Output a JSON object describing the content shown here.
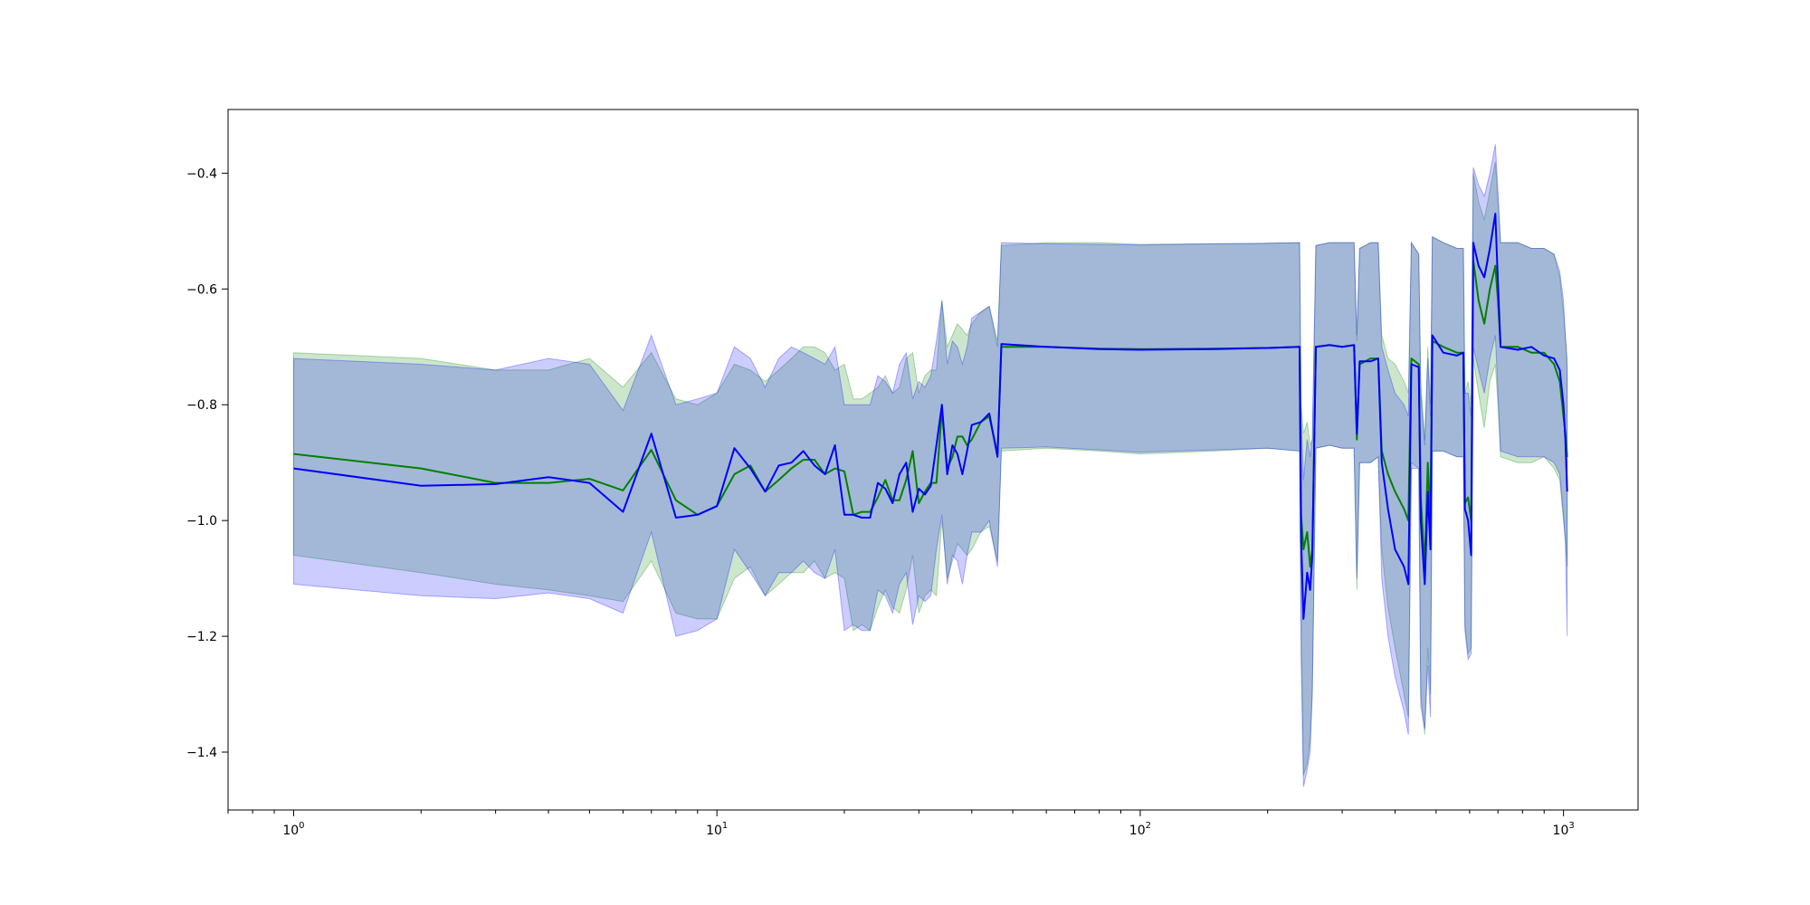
{
  "chart_data": {
    "type": "line",
    "title": "",
    "xlabel": "",
    "ylabel": "",
    "x_scale": "log",
    "xlim": [
      0.7,
      1500
    ],
    "ylim": [
      -1.5,
      -0.29
    ],
    "grid": false,
    "x_ticks": [
      {
        "value": 1,
        "base": "10",
        "exp": "0"
      },
      {
        "value": 10,
        "base": "10",
        "exp": "1"
      },
      {
        "value": 100,
        "base": "10",
        "exp": "2"
      },
      {
        "value": 1000,
        "base": "10",
        "exp": "3"
      }
    ],
    "y_ticks": [
      {
        "value": -0.4,
        "label": "−0.4"
      },
      {
        "value": -0.6,
        "label": "−0.6"
      },
      {
        "value": -0.8,
        "label": "−0.8"
      },
      {
        "value": -1.0,
        "label": "−1.0"
      },
      {
        "value": -1.2,
        "label": "−1.2"
      },
      {
        "value": -1.4,
        "label": "−1.4"
      }
    ],
    "series": [
      {
        "color": "#008000",
        "band_color": "#008000",
        "band_opacity": 0.2,
        "points": [
          [
            1,
            -0.885,
            -0.71,
            -1.06
          ],
          [
            2,
            -0.91,
            -0.72,
            -1.09
          ],
          [
            3,
            -0.935,
            -0.74,
            -1.11
          ],
          [
            4,
            -0.935,
            -0.74,
            -1.12
          ],
          [
            5,
            -0.928,
            -0.72,
            -1.13
          ],
          [
            6,
            -0.948,
            -0.77,
            -1.14
          ],
          [
            7,
            -0.878,
            -0.71,
            -1.07
          ],
          [
            8,
            -0.965,
            -0.79,
            -1.16
          ],
          [
            9,
            -0.99,
            -0.8,
            -1.17
          ],
          [
            10,
            -0.975,
            -0.78,
            -1.17
          ],
          [
            11,
            -0.92,
            -0.73,
            -1.1
          ],
          [
            12,
            -0.905,
            -0.74,
            -1.08
          ],
          [
            13,
            -0.95,
            -0.76,
            -1.13
          ],
          [
            14,
            -0.93,
            -0.74,
            -1.11
          ],
          [
            15,
            -0.91,
            -0.72,
            -1.09
          ],
          [
            16,
            -0.895,
            -0.7,
            -1.09
          ],
          [
            17,
            -0.895,
            -0.7,
            -1.07
          ],
          [
            18,
            -0.92,
            -0.71,
            -1.1
          ],
          [
            19,
            -0.91,
            -0.74,
            -1.09
          ],
          [
            20,
            -0.915,
            -0.73,
            -1.1
          ],
          [
            21,
            -0.99,
            -0.79,
            -1.19
          ],
          [
            22,
            -0.985,
            -0.79,
            -1.18
          ],
          [
            23,
            -0.985,
            -0.78,
            -1.19
          ],
          [
            24,
            -0.96,
            -0.77,
            -1.15
          ],
          [
            25,
            -0.93,
            -0.75,
            -1.12
          ],
          [
            26,
            -0.965,
            -0.78,
            -1.15
          ],
          [
            27,
            -0.965,
            -0.77,
            -1.16
          ],
          [
            28,
            -0.93,
            -0.72,
            -1.12
          ],
          [
            29,
            -0.88,
            -0.71,
            -1.06
          ],
          [
            30,
            -0.97,
            -0.78,
            -1.16
          ],
          [
            31,
            -0.95,
            -0.75,
            -1.13
          ],
          [
            32,
            -0.935,
            -0.74,
            -1.12
          ],
          [
            33,
            -0.935,
            -0.74,
            -1.13
          ],
          [
            34,
            -0.81,
            -0.62,
            -1.0
          ],
          [
            35,
            -0.91,
            -0.7,
            -1.1
          ],
          [
            36,
            -0.89,
            -0.68,
            -1.07
          ],
          [
            37,
            -0.855,
            -0.66,
            -1.04
          ],
          [
            38,
            -0.855,
            -0.67,
            -1.05
          ],
          [
            39,
            -0.87,
            -0.68,
            -1.06
          ],
          [
            40,
            -0.86,
            -0.66,
            -1.05
          ],
          [
            42,
            -0.83,
            -0.64,
            -1.02
          ],
          [
            44,
            -0.82,
            -0.63,
            -1.01
          ],
          [
            46,
            -0.885,
            -0.69,
            -1.07
          ],
          [
            47,
            -0.7,
            -0.525,
            -0.88
          ],
          [
            60,
            -0.7,
            -0.52,
            -0.875
          ],
          [
            80,
            -0.703,
            -0.52,
            -0.88
          ],
          [
            100,
            -0.704,
            -0.523,
            -0.885
          ],
          [
            150,
            -0.703,
            -0.522,
            -0.88
          ],
          [
            200,
            -0.702,
            -0.521,
            -0.875
          ],
          [
            238,
            -0.7,
            -0.52,
            -0.88
          ],
          [
            240,
            -0.99,
            -0.8,
            -1.16
          ],
          [
            243,
            -1.05,
            -0.85,
            -1.44
          ],
          [
            248,
            -1.02,
            -0.83,
            -1.42
          ],
          [
            252,
            -1.08,
            -0.87,
            -1.38
          ],
          [
            255,
            -1.05,
            -0.86,
            -1.3
          ],
          [
            260,
            -0.7,
            -0.525,
            -0.875
          ],
          [
            280,
            -0.697,
            -0.52,
            -0.87
          ],
          [
            300,
            -0.7,
            -0.52,
            -0.875
          ],
          [
            320,
            -0.697,
            -0.52,
            -0.875
          ],
          [
            325,
            -0.86,
            -0.69,
            -1.12
          ],
          [
            330,
            -0.73,
            -0.53,
            -0.9
          ],
          [
            350,
            -0.72,
            -0.52,
            -0.9
          ],
          [
            365,
            -0.72,
            -0.52,
            -0.89
          ],
          [
            372,
            -0.88,
            -0.68,
            -1.05
          ],
          [
            385,
            -0.92,
            -0.72,
            -1.15
          ],
          [
            400,
            -0.95,
            -0.73,
            -1.22
          ],
          [
            420,
            -0.98,
            -0.76,
            -1.3
          ],
          [
            430,
            -1.0,
            -0.78,
            -1.34
          ],
          [
            437,
            -0.72,
            -0.52,
            -0.9
          ],
          [
            455,
            -0.73,
            -0.54,
            -0.91
          ],
          [
            460,
            -0.96,
            -0.76,
            -1.3
          ],
          [
            470,
            -1.08,
            -0.86,
            -1.37
          ],
          [
            478,
            -0.9,
            -0.7,
            -1.22
          ],
          [
            485,
            -1.0,
            -0.8,
            -1.3
          ],
          [
            490,
            -0.69,
            -0.51,
            -0.88
          ],
          [
            520,
            -0.7,
            -0.52,
            -0.88
          ],
          [
            560,
            -0.71,
            -0.53,
            -0.89
          ],
          [
            580,
            -0.71,
            -0.53,
            -0.89
          ],
          [
            585,
            -0.97,
            -0.78,
            -1.18
          ],
          [
            595,
            -0.96,
            -0.76,
            -1.23
          ],
          [
            605,
            -1.0,
            -0.8,
            -1.22
          ],
          [
            612,
            -0.55,
            -0.4,
            -0.72
          ],
          [
            630,
            -0.62,
            -0.45,
            -0.78
          ],
          [
            650,
            -0.66,
            -0.48,
            -0.84
          ],
          [
            670,
            -0.6,
            -0.43,
            -0.76
          ],
          [
            690,
            -0.56,
            -0.38,
            -0.73
          ],
          [
            700,
            -0.62,
            -0.45,
            -0.8
          ],
          [
            710,
            -0.7,
            -0.52,
            -0.89
          ],
          [
            780,
            -0.7,
            -0.52,
            -0.9
          ],
          [
            840,
            -0.71,
            -0.53,
            -0.9
          ],
          [
            900,
            -0.71,
            -0.53,
            -0.89
          ],
          [
            950,
            -0.73,
            -0.54,
            -0.91
          ],
          [
            980,
            -0.76,
            -0.58,
            -0.93
          ],
          [
            1000,
            -0.82,
            -0.64,
            -1.0
          ],
          [
            1010,
            -0.85,
            -0.68,
            -1.03
          ],
          [
            1020,
            -0.89,
            -0.72,
            -1.08
          ]
        ]
      },
      {
        "color": "#0000ff",
        "band_color": "#0000ff",
        "band_opacity": 0.2,
        "points": [
          [
            1,
            -0.91,
            -0.72,
            -1.11
          ],
          [
            2,
            -0.94,
            -0.73,
            -1.13
          ],
          [
            3,
            -0.937,
            -0.74,
            -1.135
          ],
          [
            4,
            -0.925,
            -0.72,
            -1.125
          ],
          [
            5,
            -0.935,
            -0.73,
            -1.135
          ],
          [
            6,
            -0.985,
            -0.81,
            -1.16
          ],
          [
            7,
            -0.85,
            -0.68,
            -1.02
          ],
          [
            8,
            -0.995,
            -0.8,
            -1.2
          ],
          [
            9,
            -0.99,
            -0.79,
            -1.19
          ],
          [
            10,
            -0.975,
            -0.78,
            -1.17
          ],
          [
            11,
            -0.875,
            -0.7,
            -1.05
          ],
          [
            12,
            -0.91,
            -0.72,
            -1.09
          ],
          [
            13,
            -0.95,
            -0.77,
            -1.13
          ],
          [
            14,
            -0.905,
            -0.72,
            -1.09
          ],
          [
            15,
            -0.9,
            -0.7,
            -1.09
          ],
          [
            16,
            -0.88,
            -0.71,
            -1.07
          ],
          [
            17,
            -0.905,
            -0.72,
            -1.09
          ],
          [
            18,
            -0.92,
            -0.73,
            -1.1
          ],
          [
            19,
            -0.87,
            -0.7,
            -1.05
          ],
          [
            20,
            -0.99,
            -0.8,
            -1.19
          ],
          [
            21,
            -0.99,
            -0.8,
            -1.18
          ],
          [
            22,
            -0.995,
            -0.8,
            -1.19
          ],
          [
            23,
            -0.995,
            -0.8,
            -1.19
          ],
          [
            24,
            -0.935,
            -0.75,
            -1.12
          ],
          [
            25,
            -0.945,
            -0.76,
            -1.13
          ],
          [
            26,
            -0.97,
            -0.78,
            -1.16
          ],
          [
            27,
            -0.92,
            -0.73,
            -1.11
          ],
          [
            28,
            -0.9,
            -0.71,
            -1.09
          ],
          [
            29,
            -0.985,
            -0.79,
            -1.18
          ],
          [
            30,
            -0.945,
            -0.76,
            -1.13
          ],
          [
            31,
            -0.955,
            -0.77,
            -1.14
          ],
          [
            32,
            -0.94,
            -0.75,
            -1.13
          ],
          [
            33,
            -0.87,
            -0.69,
            -1.05
          ],
          [
            34,
            -0.8,
            -0.62,
            -0.99
          ],
          [
            35,
            -0.92,
            -0.73,
            -1.11
          ],
          [
            36,
            -0.87,
            -0.69,
            -1.06
          ],
          [
            37,
            -0.885,
            -0.7,
            -1.07
          ],
          [
            38,
            -0.92,
            -0.73,
            -1.11
          ],
          [
            39,
            -0.88,
            -0.7,
            -1.06
          ],
          [
            40,
            -0.835,
            -0.65,
            -1.02
          ],
          [
            42,
            -0.83,
            -0.64,
            -1.02
          ],
          [
            44,
            -0.815,
            -0.63,
            -1.0
          ],
          [
            46,
            -0.89,
            -0.7,
            -1.08
          ],
          [
            47,
            -0.695,
            -0.52,
            -0.875
          ],
          [
            60,
            -0.7,
            -0.522,
            -0.873
          ],
          [
            80,
            -0.704,
            -0.523,
            -0.878
          ],
          [
            100,
            -0.705,
            -0.524,
            -0.882
          ],
          [
            150,
            -0.704,
            -0.522,
            -0.878
          ],
          [
            200,
            -0.702,
            -0.521,
            -0.875
          ],
          [
            238,
            -0.7,
            -0.52,
            -0.88
          ],
          [
            240,
            -1.03,
            -0.82,
            -1.24
          ],
          [
            243,
            -1.17,
            -0.93,
            -1.46
          ],
          [
            248,
            -1.09,
            -0.86,
            -1.43
          ],
          [
            252,
            -1.12,
            -0.89,
            -1.4
          ],
          [
            255,
            -1.06,
            -0.86,
            -1.29
          ],
          [
            260,
            -0.7,
            -0.525,
            -0.875
          ],
          [
            280,
            -0.697,
            -0.52,
            -0.87
          ],
          [
            300,
            -0.7,
            -0.52,
            -0.875
          ],
          [
            320,
            -0.697,
            -0.52,
            -0.875
          ],
          [
            325,
            -0.85,
            -0.68,
            -1.1
          ],
          [
            330,
            -0.725,
            -0.53,
            -0.9
          ],
          [
            350,
            -0.725,
            -0.52,
            -0.9
          ],
          [
            365,
            -0.72,
            -0.52,
            -0.89
          ],
          [
            372,
            -0.9,
            -0.7,
            -1.1
          ],
          [
            385,
            -0.98,
            -0.74,
            -1.2
          ],
          [
            400,
            -1.05,
            -0.78,
            -1.27
          ],
          [
            420,
            -1.08,
            -0.8,
            -1.33
          ],
          [
            430,
            -1.11,
            -0.82,
            -1.37
          ],
          [
            437,
            -0.73,
            -0.52,
            -0.91
          ],
          [
            455,
            -0.735,
            -0.54,
            -0.91
          ],
          [
            460,
            -1.0,
            -0.78,
            -1.32
          ],
          [
            470,
            -1.11,
            -0.87,
            -1.36
          ],
          [
            478,
            -0.95,
            -0.72,
            -1.25
          ],
          [
            485,
            -1.05,
            -0.82,
            -1.34
          ],
          [
            490,
            -0.68,
            -0.51,
            -0.88
          ],
          [
            520,
            -0.71,
            -0.52,
            -0.88
          ],
          [
            560,
            -0.715,
            -0.53,
            -0.89
          ],
          [
            580,
            -0.71,
            -0.53,
            -0.89
          ],
          [
            585,
            -0.98,
            -0.78,
            -1.19
          ],
          [
            595,
            -1.0,
            -0.78,
            -1.24
          ],
          [
            605,
            -1.06,
            -0.82,
            -1.23
          ],
          [
            612,
            -0.52,
            -0.39,
            -0.7
          ],
          [
            630,
            -0.56,
            -0.42,
            -0.74
          ],
          [
            650,
            -0.58,
            -0.44,
            -0.78
          ],
          [
            670,
            -0.53,
            -0.4,
            -0.72
          ],
          [
            690,
            -0.47,
            -0.35,
            -0.68
          ],
          [
            700,
            -0.59,
            -0.43,
            -0.78
          ],
          [
            710,
            -0.7,
            -0.52,
            -0.88
          ],
          [
            780,
            -0.705,
            -0.52,
            -0.89
          ],
          [
            840,
            -0.7,
            -0.53,
            -0.89
          ],
          [
            900,
            -0.715,
            -0.53,
            -0.89
          ],
          [
            950,
            -0.72,
            -0.54,
            -0.9
          ],
          [
            980,
            -0.74,
            -0.57,
            -0.92
          ],
          [
            1000,
            -0.8,
            -0.62,
            -0.99
          ],
          [
            1010,
            -0.86,
            -0.68,
            -1.04
          ],
          [
            1020,
            -0.95,
            -0.74,
            -1.2
          ]
        ]
      }
    ]
  }
}
